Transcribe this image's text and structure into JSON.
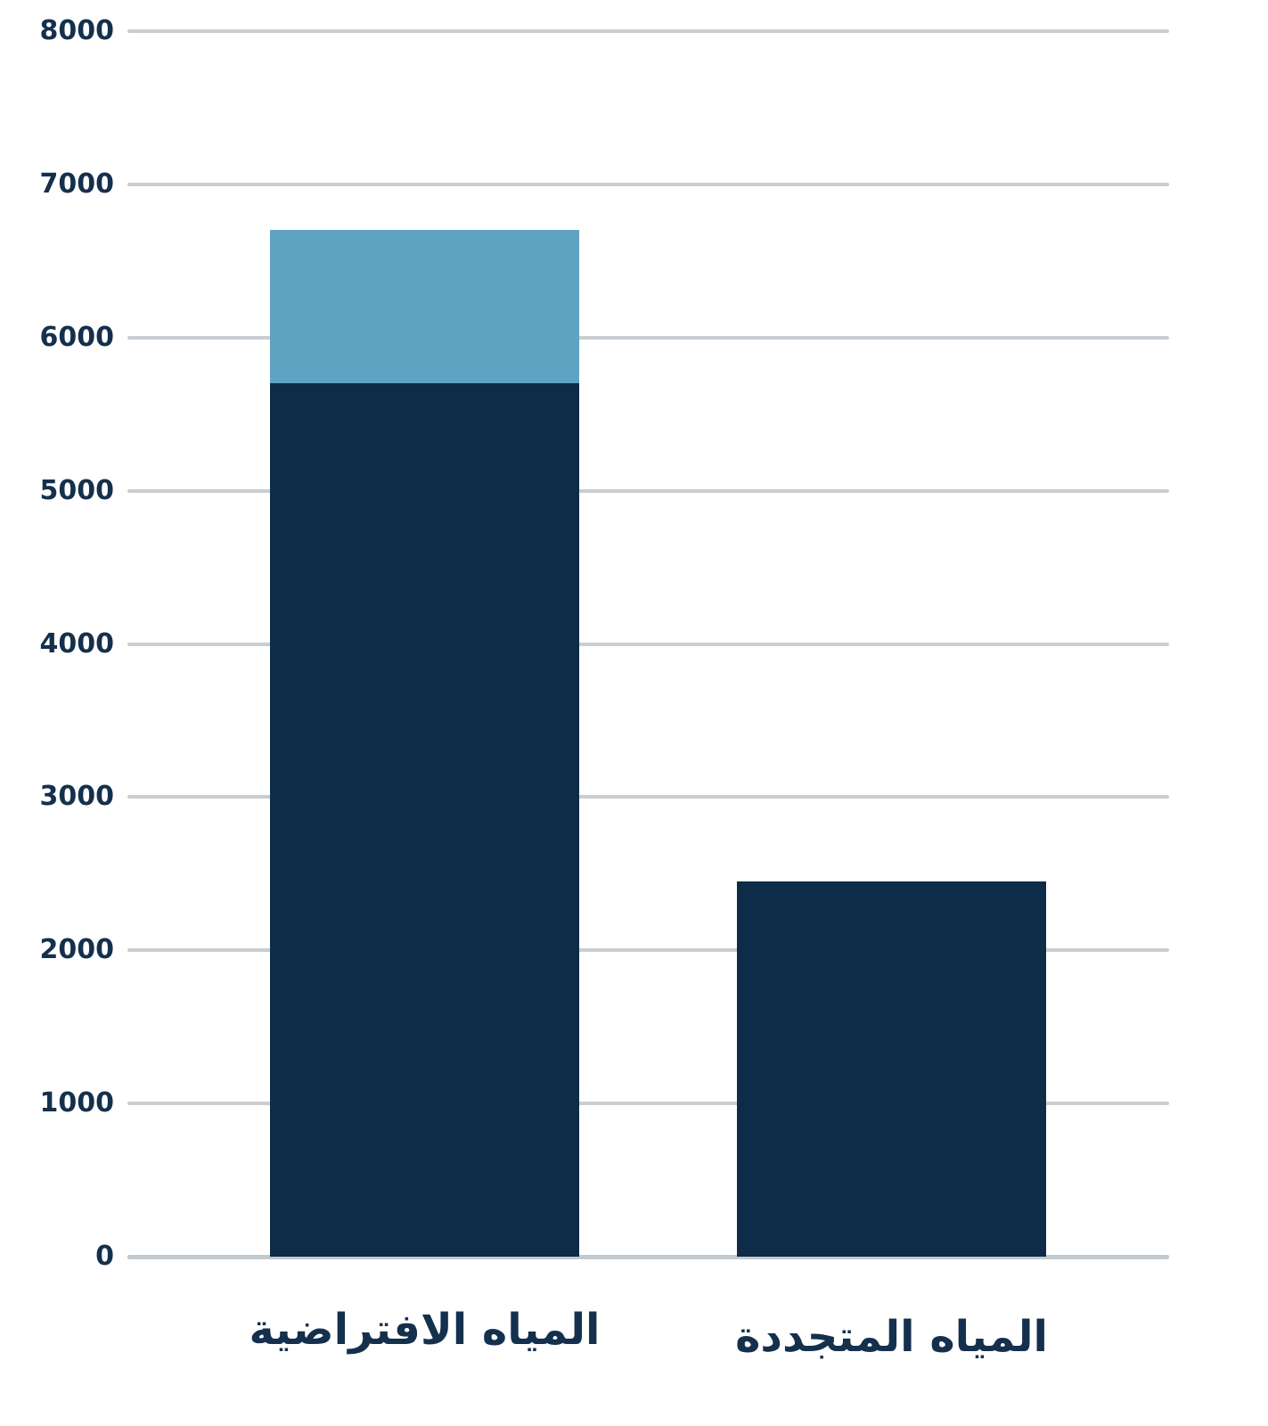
{
  "chart_data": {
    "type": "bar",
    "subtype": "stacked-vertical",
    "title": "",
    "xlabel": "",
    "ylabel": "",
    "categories": [
      "المياه الافتراضية",
      "المياه المتجددة"
    ],
    "series": [
      {
        "name": "navy-segment",
        "color": "#0e2b47",
        "values": [
          5700,
          2450
        ]
      },
      {
        "name": "light-blue-segment",
        "color": "#5fa2c1",
        "values": [
          1000,
          0
        ]
      }
    ],
    "stack_totals": [
      6700,
      2450
    ],
    "ylim": [
      0,
      8000
    ],
    "yticks": [
      0,
      1000,
      2000,
      3000,
      4000,
      5000,
      6000,
      7000,
      8000
    ],
    "grid": true,
    "legend": false,
    "colors": {
      "navy": "#0e2b47",
      "light_blue": "#5fa2c1",
      "gridline": "#c9ced3",
      "zero_line": "#c2c9ce",
      "text": "#14304d",
      "background": "#ffffff"
    }
  }
}
